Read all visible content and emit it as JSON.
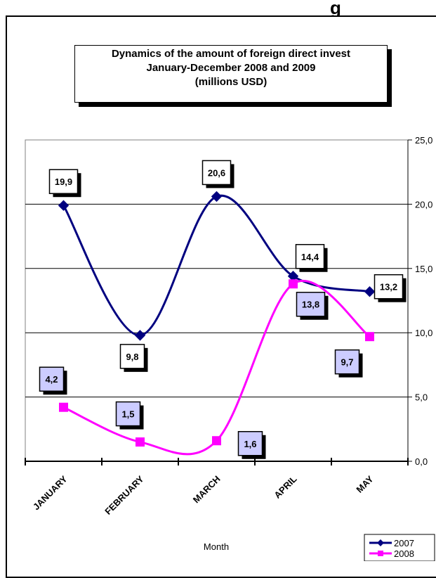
{
  "top_label": "g",
  "chart_data": {
    "type": "line",
    "title_lines": [
      "Dynamics of the amount of foreign direct invest",
      "January-December 2008 and  2009",
      "(millions USD)"
    ],
    "xlabel": "Month",
    "ylabel": "",
    "categories": [
      "JANUARY",
      "FEBRUARY",
      "MARCH",
      "APRIL",
      "MAY"
    ],
    "y_ticks": [
      "0,0",
      "5,0",
      "10,0",
      "15,0",
      "20,0",
      "25,0"
    ],
    "ylim": [
      0,
      25
    ],
    "y_axis_side": "right",
    "grid": true,
    "legend_position": "bottom-right",
    "series": [
      {
        "name": "2007",
        "values": [
          19.9,
          9.8,
          20.6,
          14.4,
          13.2
        ],
        "labels": [
          "19,9",
          "9,8",
          "20,6",
          "14,4",
          "13,2"
        ],
        "color": "#000080",
        "marker": "diamond",
        "label_fill": "#ffffff"
      },
      {
        "name": "2008",
        "values": [
          4.2,
          1.5,
          1.6,
          13.8,
          9.7
        ],
        "labels": [
          "4,2",
          "1,5",
          "1,6",
          "13,8",
          "9,7"
        ],
        "color": "#ff00ff",
        "marker": "square",
        "label_fill": "#ccccff"
      }
    ]
  }
}
